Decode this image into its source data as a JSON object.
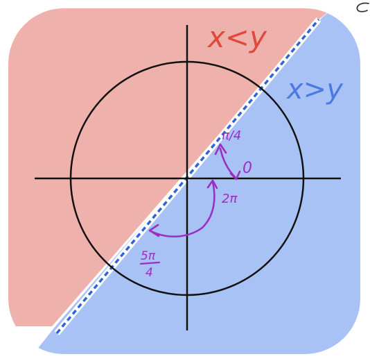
{
  "labels": {
    "x_less_y": "x<y",
    "x_greater_y": "x>y",
    "pi_over_4": "π/4",
    "zero": "0",
    "two_pi": "2π",
    "five_pi_over_4_num": "5π",
    "five_pi_over_4_den": "4"
  },
  "colors": {
    "red_region": "#eeb1ac",
    "blue_region": "#a9c2f6",
    "red_text": "#e0493c",
    "blue_text": "#4a79e0",
    "dashed_line": "#2f63d8",
    "axes": "#111111",
    "angle_arrows": "#9b2fc4"
  }
}
